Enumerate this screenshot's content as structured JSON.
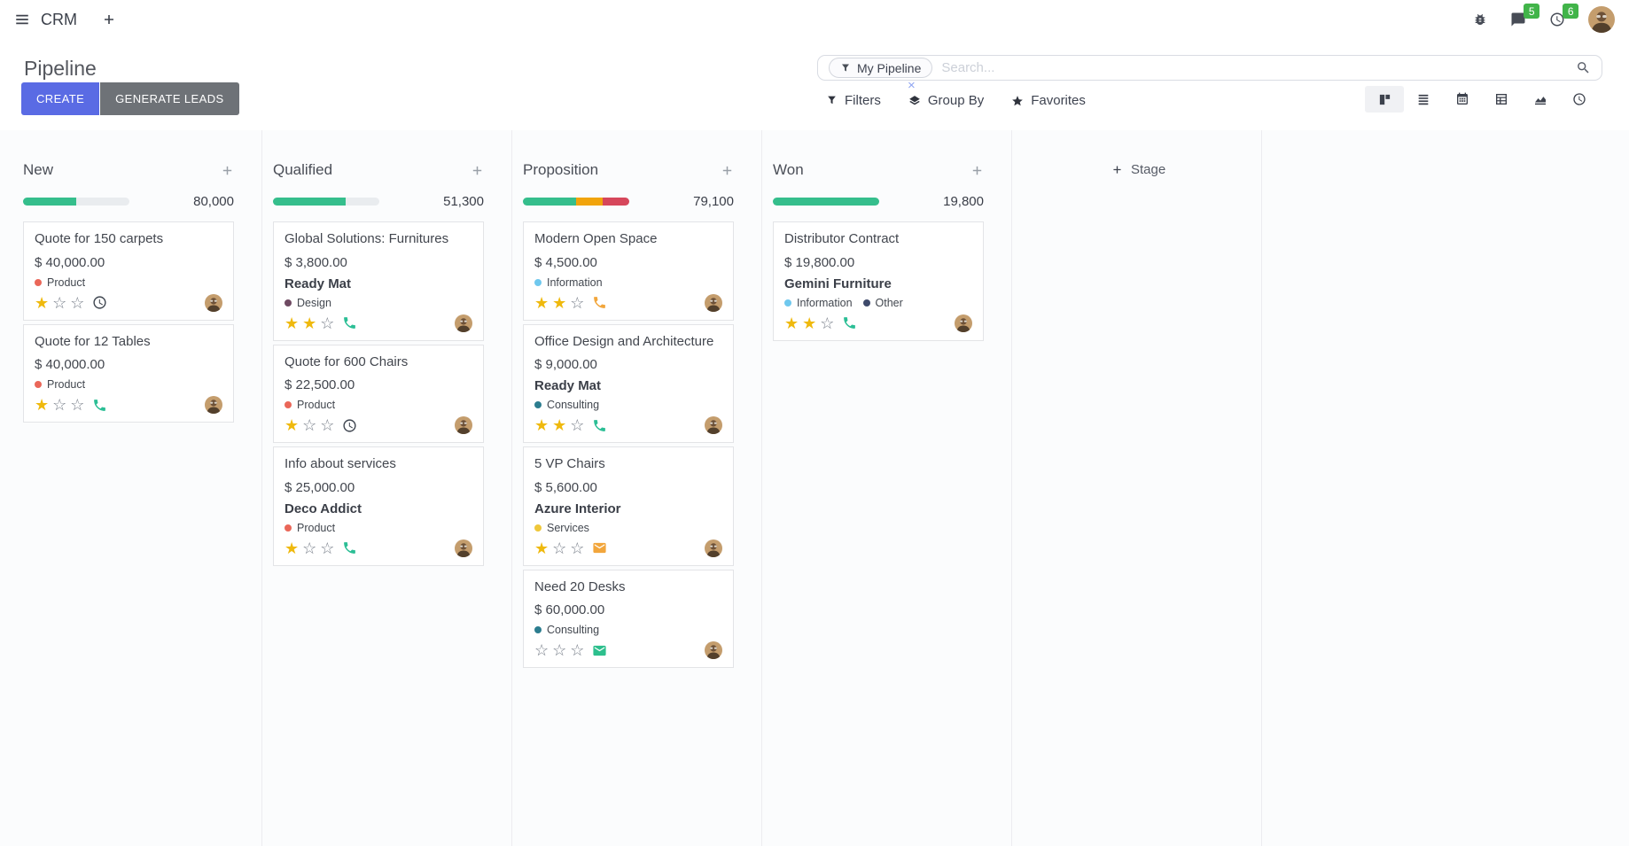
{
  "navbar": {
    "app": "CRM",
    "icons": [
      "apps-menu-icon",
      "add-icon",
      "bug-icon",
      "messages-icon",
      "activities-icon",
      "user-avatar"
    ],
    "message_badge": "5",
    "activity_badge": "6",
    "badge_color": "#41b449"
  },
  "control_panel": {
    "title": "Pipeline",
    "create_label": "CREATE",
    "generate_leads_label": "GENERATE LEADS",
    "primary_color": "#5a6be4",
    "secondary_color": "#6e7277",
    "search": {
      "facet_label": "My Pipeline",
      "facet_icon": "funnel-icon",
      "facet_remove_glyph": "×",
      "placeholder": "Search...",
      "magnifier_icon": "search-icon"
    },
    "filters_label": "Filters",
    "group_by_label": "Group By",
    "favorites_label": "Favorites"
  },
  "view_switcher": {
    "buttons": [
      {
        "icon": "kanban-view-icon",
        "active": true
      },
      {
        "icon": "list-view-icon",
        "active": false
      },
      {
        "icon": "calendar-view-icon",
        "active": false
      },
      {
        "icon": "pivot-view-icon",
        "active": false
      },
      {
        "icon": "graph-view-icon",
        "active": false
      },
      {
        "icon": "activity-view-icon",
        "active": false
      }
    ]
  },
  "kanban": {
    "add_stage_label": "Stage",
    "stars_max": 3,
    "progress_track_color": "#e9ecef",
    "columns": [
      {
        "name": "New",
        "total": "80,000",
        "progress": [
          {
            "color": "#35be8c",
            "pct": 50
          }
        ],
        "cards": [
          {
            "title": "Quote for 150 carpets",
            "amount": "$ 40,000.00",
            "tags": [
              {
                "label": "Product",
                "color": "#ea6759"
              }
            ],
            "stars": 1,
            "activity": {
              "icon": "clock",
              "color": "#3f4650"
            }
          },
          {
            "title": "Quote for 12 Tables",
            "amount": "$ 40,000.00",
            "tags": [
              {
                "label": "Product",
                "color": "#ea6759"
              }
            ],
            "stars": 1,
            "activity": {
              "icon": "phone",
              "color": "#2bbe95"
            }
          }
        ]
      },
      {
        "name": "Qualified",
        "total": "51,300",
        "progress": [
          {
            "color": "#35be8c",
            "pct": 68
          }
        ],
        "cards": [
          {
            "title": "Global Solutions: Furnitures",
            "amount": "$ 3,800.00",
            "partner": "Ready Mat",
            "tags": [
              {
                "label": "Design",
                "color": "#6f4a62"
              }
            ],
            "stars": 2,
            "activity": {
              "icon": "phone",
              "color": "#2bbe95"
            }
          },
          {
            "title": "Quote for 600 Chairs",
            "amount": "$ 22,500.00",
            "tags": [
              {
                "label": "Product",
                "color": "#ea6759"
              }
            ],
            "stars": 1,
            "activity": {
              "icon": "clock",
              "color": "#3f4650"
            }
          },
          {
            "title": "Info about services",
            "amount": "$ 25,000.00",
            "partner": "Deco Addict",
            "tags": [
              {
                "label": "Product",
                "color": "#ea6759"
              }
            ],
            "stars": 1,
            "activity": {
              "icon": "phone",
              "color": "#2bbe95"
            }
          }
        ]
      },
      {
        "name": "Proposition",
        "total": "79,100",
        "progress": [
          {
            "color": "#35be8c",
            "pct": 50
          },
          {
            "color": "#f1a40b",
            "pct": 25
          },
          {
            "color": "#d6475b",
            "pct": 25
          }
        ],
        "cards": [
          {
            "title": "Modern Open Space",
            "amount": "$ 4,500.00",
            "tags": [
              {
                "label": "Information",
                "color": "#6fc8ee"
              }
            ],
            "stars": 2,
            "activity": {
              "icon": "phone",
              "color": "#f2a63c"
            }
          },
          {
            "title": "Office Design and Architecture",
            "amount": "$ 9,000.00",
            "partner": "Ready Mat",
            "tags": [
              {
                "label": "Consulting",
                "color": "#2c7d8f"
              }
            ],
            "stars": 2,
            "activity": {
              "icon": "phone",
              "color": "#2bbe95"
            }
          },
          {
            "title": "5 VP Chairs",
            "amount": "$ 5,600.00",
            "partner": "Azure Interior",
            "tags": [
              {
                "label": "Services",
                "color": "#efc73a"
              }
            ],
            "stars": 1,
            "activity": {
              "icon": "envelope",
              "color": "#f2a63c"
            }
          },
          {
            "title": "Need 20 Desks",
            "amount": "$ 60,000.00",
            "tags": [
              {
                "label": "Consulting",
                "color": "#2c7d8f"
              }
            ],
            "stars": 0,
            "activity": {
              "icon": "envelope",
              "color": "#2dbf8d"
            }
          }
        ]
      },
      {
        "name": "Won",
        "total": "19,800",
        "progress": [
          {
            "color": "#35be8c",
            "pct": 100
          }
        ],
        "cards": [
          {
            "title": "Distributor Contract",
            "amount": "$ 19,800.00",
            "partner": "Gemini Furniture",
            "tags": [
              {
                "label": "Information",
                "color": "#6fc8ee"
              },
              {
                "label": "Other",
                "color": "#3e4a6b"
              }
            ],
            "stars": 2,
            "activity": {
              "icon": "phone",
              "color": "#2bbe95"
            }
          }
        ]
      }
    ]
  }
}
